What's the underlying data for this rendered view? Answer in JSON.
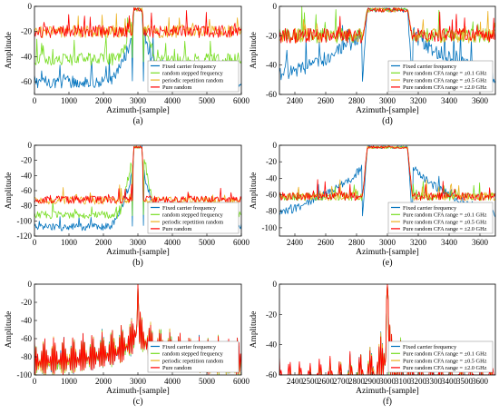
{
  "colors": {
    "series": [
      "#0072BD",
      "#77DD22",
      "#EDB120",
      "#FF0000"
    ],
    "axis": "#000000",
    "background": "#FFFFFF"
  },
  "chart_data": [
    {
      "id": "a",
      "panel_label": "(a)",
      "type": "line",
      "xlabel": "Azimuth-[sample]",
      "ylabel": "Amplitude",
      "xlim": [
        0,
        6000
      ],
      "ylim": [
        -70,
        0
      ],
      "xticks": [
        0,
        1000,
        2000,
        3000,
        4000,
        5000,
        6000
      ],
      "yticks": [
        0,
        -20,
        -40,
        -60
      ],
      "legend_position": "bottom-right",
      "series": [
        {
          "name": "Fixed carrier frequency",
          "color": "#0072BD",
          "shape": "blue",
          "level": -60
        },
        {
          "name": "random stepped frequency",
          "color": "#77DD22",
          "shape": "green",
          "level": -42
        },
        {
          "name": "periodic repetition random",
          "color": "#EDB120",
          "shape": "flat",
          "level": -20
        },
        {
          "name": "Pure random",
          "color": "#FF0000",
          "shape": "flat",
          "level": -20
        }
      ],
      "peak": {
        "center": 3000,
        "halfwidth": 130
      }
    },
    {
      "id": "d",
      "panel_label": "(d)",
      "type": "line",
      "xlabel": "Azimuth-[sample]",
      "ylabel": "Amplitude",
      "xlim": [
        2300,
        3700
      ],
      "ylim": [
        -60,
        0
      ],
      "xticks": [
        2400,
        2600,
        2800,
        3000,
        3200,
        3400,
        3600
      ],
      "yticks": [
        0,
        -20,
        -40,
        -60
      ],
      "legend_position": "bottom-right",
      "series": [
        {
          "name": "Fixed carrier frequency",
          "color": "#0072BD",
          "shape": "blue",
          "level": -50
        },
        {
          "name": "Pure random CFA range = ±0.1 GHz",
          "color": "#77DD22",
          "shape": "flat",
          "level": -20
        },
        {
          "name": "Pure random CFA range = ±0.5 GHz",
          "color": "#EDB120",
          "shape": "flat",
          "level": -20
        },
        {
          "name": "Pure random CFA range = ±2.0 GHz",
          "color": "#FF0000",
          "shape": "flat",
          "level": -20
        }
      ],
      "peak": {
        "center": 3000,
        "halfwidth": 130
      }
    },
    {
      "id": "b",
      "panel_label": "(b)",
      "type": "line",
      "xlabel": "Azimuth-[sample]",
      "ylabel": "Amplitude",
      "xlim": [
        0,
        6000
      ],
      "ylim": [
        -120,
        0
      ],
      "xticks": [
        0,
        1000,
        2000,
        3000,
        4000,
        5000,
        6000
      ],
      "yticks": [
        0,
        -20,
        -40,
        -60,
        -80,
        -100,
        -120
      ],
      "legend_position": "bottom-right",
      "series": [
        {
          "name": "Fixed carrier frequency",
          "color": "#0072BD",
          "shape": "blue",
          "level": -108
        },
        {
          "name": "random stepped frequency",
          "color": "#77DD22",
          "shape": "green",
          "level": -92
        },
        {
          "name": "periodic repetition random",
          "color": "#EDB120",
          "shape": "flat",
          "level": -73
        },
        {
          "name": "Pure random",
          "color": "#FF0000",
          "shape": "flat",
          "level": -72
        }
      ],
      "peak": {
        "center": 3000,
        "halfwidth": 130
      }
    },
    {
      "id": "e",
      "panel_label": "(e)",
      "type": "line",
      "xlabel": "Azimuth-[sample]",
      "ylabel": "Amplitude",
      "xlim": [
        2300,
        3700
      ],
      "ylim": [
        -110,
        0
      ],
      "xticks": [
        2400,
        2600,
        2800,
        3000,
        3200,
        3400,
        3600
      ],
      "yticks": [
        0,
        -20,
        -40,
        -60,
        -80,
        -100
      ],
      "legend_position": "bottom-right",
      "series": [
        {
          "name": "Fixed carrier frequency",
          "color": "#0072BD",
          "shape": "blue",
          "level": -88
        },
        {
          "name": "Pure random CFA range = ±0.1 GHz",
          "color": "#77DD22",
          "shape": "flat",
          "level": -62
        },
        {
          "name": "Pure random CFA range = ±0.5 GHz",
          "color": "#EDB120",
          "shape": "flat",
          "level": -62
        },
        {
          "name": "Pure random CFA range = ±2.0 GHz",
          "color": "#FF0000",
          "shape": "flat",
          "level": -62
        }
      ],
      "peak": {
        "center": 3000,
        "halfwidth": 130
      }
    },
    {
      "id": "c",
      "panel_label": "(c)",
      "type": "line",
      "xlabel": "Azimuth-[sample]",
      "ylabel": "Amplitude",
      "xlim": [
        0,
        6000
      ],
      "ylim": [
        -100,
        0
      ],
      "xticks": [
        0,
        1000,
        2000,
        3000,
        4000,
        5000,
        6000
      ],
      "yticks": [
        0,
        -20,
        -40,
        -60,
        -80,
        -100
      ],
      "legend_position": "bottom-right",
      "series": [
        {
          "name": "Fixed carrier frequency",
          "color": "#0072BD",
          "shape": "sinc",
          "level": -82
        },
        {
          "name": "random stepped frequency",
          "color": "#77DD22",
          "shape": "sinc",
          "level": -82
        },
        {
          "name": "periodic repetition random",
          "color": "#EDB120",
          "shape": "sinc",
          "level": -82
        },
        {
          "name": "Pure random",
          "color": "#FF0000",
          "shape": "sinc",
          "level": -55
        }
      ],
      "peak": {
        "center": 3000,
        "halfwidth": 60
      }
    },
    {
      "id": "f",
      "panel_label": "(f)",
      "type": "line",
      "xlabel": "Azimuth-[sample]",
      "ylabel": "Amplitude",
      "xlim": [
        2300,
        3700
      ],
      "ylim": [
        -60,
        0
      ],
      "xticks": [
        2400,
        2500,
        2600,
        2700,
        2800,
        2900,
        3000,
        3100,
        3200,
        3300,
        3400,
        3500,
        3600
      ],
      "yticks": [
        0,
        -20,
        -40,
        -60
      ],
      "legend_position": "bottom-right",
      "series": [
        {
          "name": "Fixed carrier frequency",
          "color": "#0072BD",
          "shape": "sinc",
          "level": -60
        },
        {
          "name": "Pure random CFA range = ±0.1 GHz",
          "color": "#77DD22",
          "shape": "sinc",
          "level": -60
        },
        {
          "name": "Pure random CFA range = ±0.5 GHz",
          "color": "#EDB120",
          "shape": "sinc",
          "level": -60
        },
        {
          "name": "Pure random CFA range = ±2.0 GHz",
          "color": "#FF0000",
          "shape": "sinc",
          "level": -45
        }
      ],
      "peak": {
        "center": 3000,
        "halfwidth": 25
      }
    }
  ]
}
